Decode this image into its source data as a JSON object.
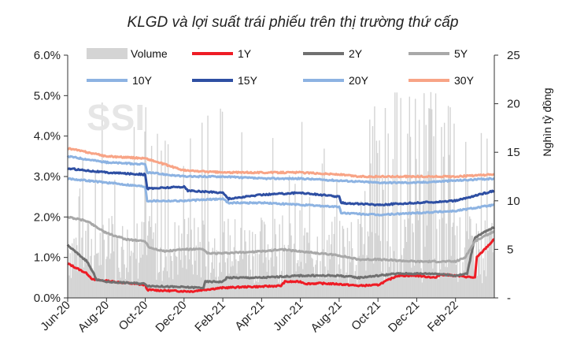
{
  "chart_data": {
    "type": "line",
    "title": "KLGD và lợi suất trái phiếu trên thị trường thứ cấp",
    "watermark": "SSI",
    "y_left": {
      "ticks": [
        "0.0%",
        "1.0%",
        "2.0%",
        "3.0%",
        "4.0%",
        "5.0%",
        "6.0%"
      ],
      "range": [
        0,
        6
      ]
    },
    "y_right": {
      "label": "Nghìn tỷ đồng",
      "ticks": [
        "-",
        "5",
        "10",
        "15",
        "20",
        "25"
      ],
      "range": [
        0,
        25
      ]
    },
    "x_ticks": [
      "Jun-20",
      "Aug-20",
      "Oct-20",
      "Dec-20",
      "Feb-21",
      "Apr-21",
      "Jun-21",
      "Aug-21",
      "Oct-21",
      "Dec-21",
      "Feb-22"
    ],
    "legend_placement": "top",
    "volume": {
      "name": "Volume",
      "color": "#d4d4d4",
      "axis": "right",
      "range_note": "daily volume bars, mostly 0–10, spikes to ~23"
    },
    "series": [
      {
        "name": "1Y",
        "color": "#ee1c25",
        "width": 3,
        "x": [
          0,
          1,
          1.3,
          2,
          4,
          4.1,
          5,
          6.4,
          7,
          8,
          8.1,
          9,
          10,
          11,
          11.2,
          12,
          12.3,
          13,
          14,
          15,
          16,
          17,
          18,
          19,
          19.2,
          20,
          21,
          21.1,
          22
        ],
        "values": [
          0.85,
          0.6,
          0.45,
          0.42,
          0.32,
          0.2,
          0.18,
          0.16,
          0.2,
          0.25,
          0.25,
          0.27,
          0.28,
          0.3,
          0.4,
          0.4,
          0.35,
          0.36,
          0.34,
          0.3,
          0.32,
          0.55,
          0.55,
          0.5,
          0.58,
          0.55,
          0.5,
          1.0,
          1.45
        ]
      },
      {
        "name": "2Y",
        "color": "#707070",
        "width": 3,
        "x": [
          0,
          1,
          1.5,
          2,
          4,
          4.1,
          5,
          7,
          7.1,
          8,
          8.2,
          10,
          12,
          14,
          15,
          17,
          19,
          20,
          20.6,
          21,
          22
        ],
        "values": [
          1.3,
          0.9,
          0.45,
          0.4,
          0.35,
          0.3,
          0.28,
          0.25,
          0.4,
          0.4,
          0.5,
          0.5,
          0.55,
          0.55,
          0.5,
          0.6,
          0.6,
          0.55,
          0.6,
          1.5,
          1.75
        ]
      },
      {
        "name": "5Y",
        "color": "#a8a8a8",
        "width": 3,
        "x": [
          0,
          1,
          2,
          3,
          4,
          4.2,
          5,
          6,
          7,
          7.2,
          8,
          10,
          11,
          12,
          14,
          15,
          16,
          18,
          20,
          20.5,
          21,
          22
        ],
        "values": [
          2.0,
          1.9,
          1.6,
          1.45,
          1.4,
          1.25,
          1.15,
          1.2,
          1.2,
          1.1,
          1.1,
          1.15,
          1.2,
          1.15,
          1.05,
          0.95,
          0.95,
          0.9,
          0.9,
          1.0,
          1.4,
          1.65
        ]
      },
      {
        "name": "10Y",
        "color": "#8db3e2",
        "width": 3,
        "x": [
          0,
          2,
          4,
          4.1,
          6,
          8,
          8.3,
          10,
          12,
          14,
          14.1,
          16,
          18,
          20,
          22
        ],
        "values": [
          2.95,
          2.85,
          2.75,
          2.4,
          2.4,
          2.45,
          2.35,
          2.35,
          2.3,
          2.25,
          2.1,
          2.05,
          2.1,
          2.15,
          2.3
        ]
      },
      {
        "name": "15Y",
        "color": "#2e4fa3",
        "width": 3,
        "x": [
          0,
          2,
          4,
          4.1,
          6,
          6.2,
          8,
          8.3,
          10,
          12,
          14,
          14.1,
          16,
          18,
          20,
          22
        ],
        "values": [
          3.2,
          3.1,
          3.05,
          2.7,
          2.75,
          2.65,
          2.6,
          2.45,
          2.55,
          2.6,
          2.5,
          2.35,
          2.3,
          2.35,
          2.4,
          2.65
        ]
      },
      {
        "name": "20Y",
        "color": "#8db3e2",
        "width": 3,
        "x": [
          0,
          2,
          4,
          4.1,
          6,
          8,
          10,
          12,
          14,
          16,
          18,
          20,
          22
        ],
        "values": [
          3.5,
          3.35,
          3.3,
          3.1,
          3.0,
          3.0,
          2.95,
          2.95,
          2.9,
          2.85,
          2.85,
          2.9,
          2.95
        ]
      },
      {
        "name": "30Y",
        "color": "#f8a486",
        "width": 3,
        "x": [
          0,
          1,
          2,
          4,
          5,
          6,
          8,
          10,
          12,
          14,
          15,
          16,
          18,
          20,
          22
        ],
        "values": [
          3.7,
          3.6,
          3.5,
          3.45,
          3.3,
          3.15,
          3.1,
          3.1,
          3.1,
          3.05,
          3.0,
          3.0,
          3.0,
          3.0,
          3.05
        ]
      }
    ]
  }
}
